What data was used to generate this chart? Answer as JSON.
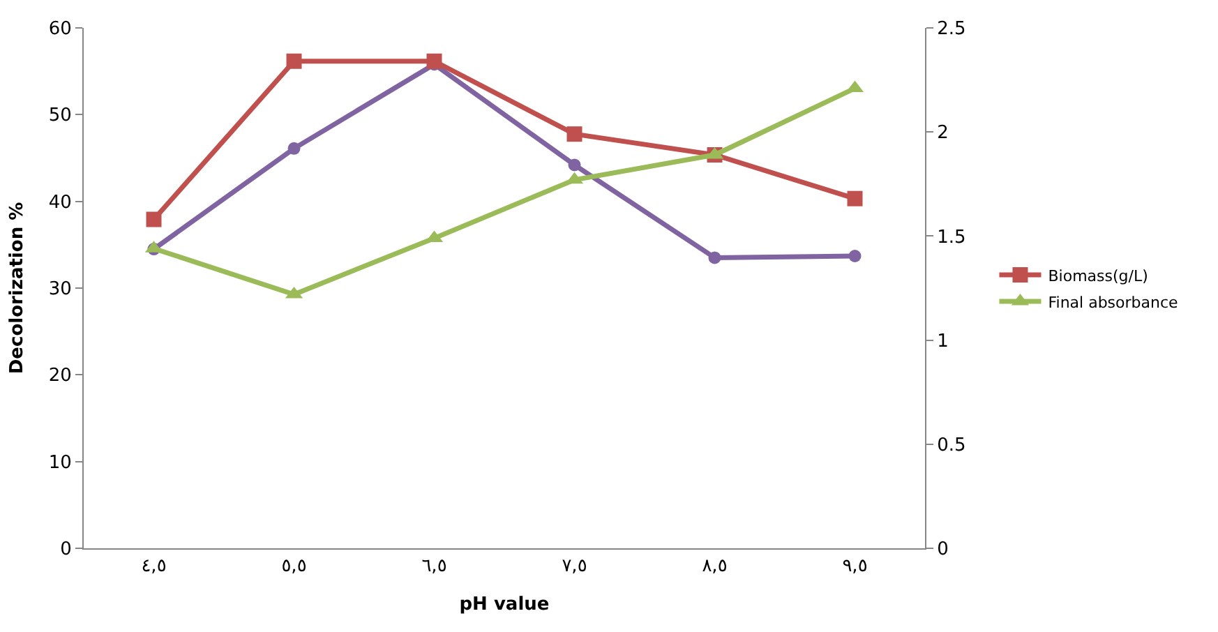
{
  "chart_data": {
    "type": "line",
    "xlabel": "pH value",
    "ylabel": "Decolorization %",
    "categories": [
      "٤,٥",
      "٥,٥",
      "٦,٥",
      "٧,٥",
      "٨,٥",
      "٩,٥"
    ],
    "ylim": [
      0,
      60
    ],
    "yticks": [
      0,
      10,
      20,
      30,
      40,
      50,
      60
    ],
    "y2lim": [
      0,
      2.5
    ],
    "y2ticks": [
      0,
      0.5,
      1,
      1.5,
      2,
      2.5
    ],
    "legend": "right",
    "grid": false,
    "series": [
      {
        "name": "Biomass(g/L)",
        "color": "#c0504d",
        "marker": "square",
        "axis": "y2",
        "values": [
          1.58,
          2.34,
          2.34,
          1.99,
          1.89,
          1.68
        ]
      },
      {
        "name": "Final absorbance",
        "color": "#9bbb59",
        "marker": "triangle",
        "axis": "y2",
        "values": [
          1.44,
          1.22,
          1.49,
          1.77,
          1.89,
          2.21
        ]
      },
      {
        "color": "#8064a2",
        "marker": "circle",
        "values": [
          34.5,
          46.1,
          55.8,
          44.2,
          33.5,
          33.7
        ]
      }
    ]
  }
}
